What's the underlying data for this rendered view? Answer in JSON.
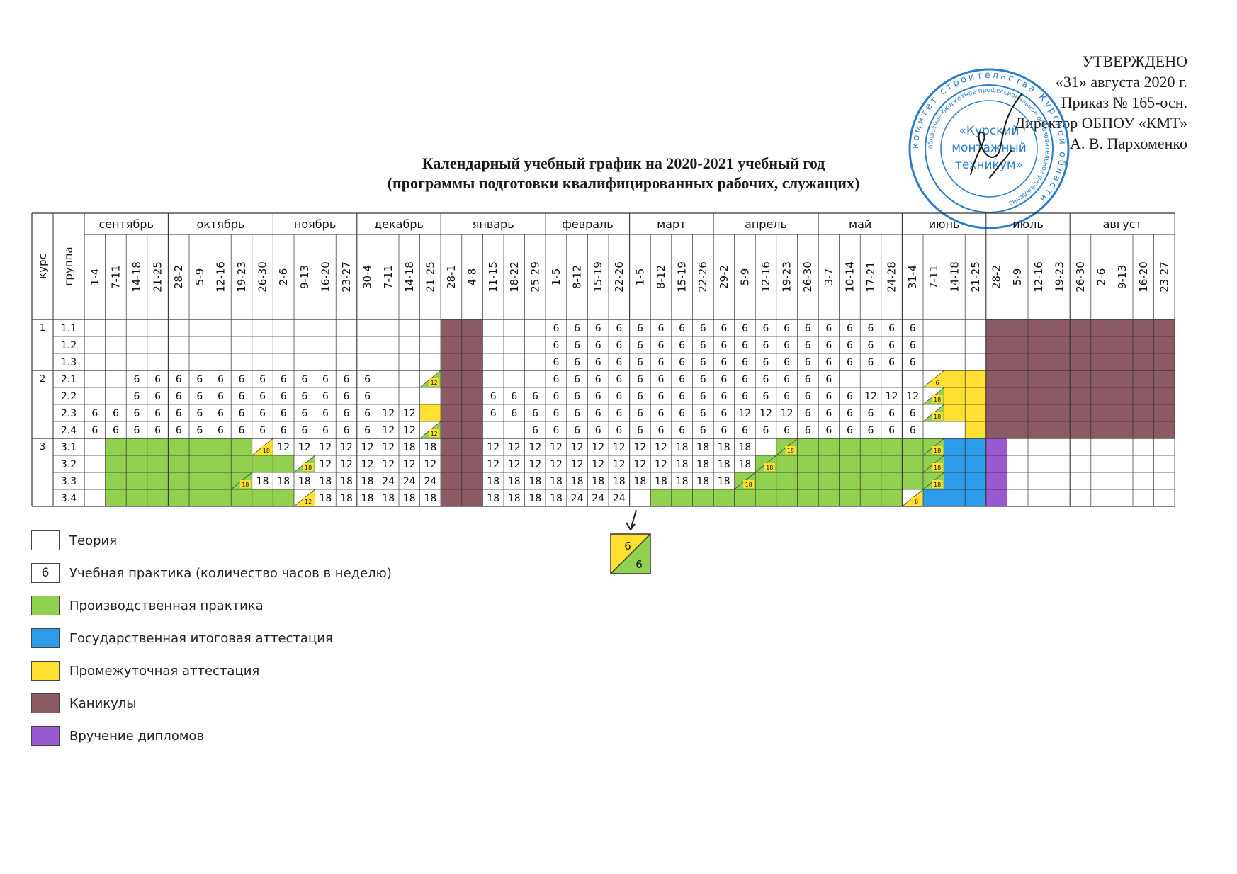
{
  "approval": {
    "l1": "УТВЕРЖДЕНО",
    "l2": "«31» августа 2020 г.",
    "l3": "Приказ № 165-осн.",
    "l4": "Директор ОБПОУ «КМТ»",
    "l5": "А. В. Пархоменко"
  },
  "stamp": {
    "outer": "комитет строительства Курской области",
    "inner": "областное бюджетное профессиональное образовательное учреждение",
    "c1": "«Курский",
    "c2": "монтажный",
    "c3": "техникум»"
  },
  "title": {
    "line1": "Календарный учебный график на 2020-2021 учебный год",
    "line2": "(программы подготовки квалифицированных рабочих, служащих)"
  },
  "headers": {
    "course": "курс",
    "group": "группа"
  },
  "months": [
    {
      "name": "сентябрь",
      "weeks": [
        "1-4",
        "7-11",
        "14-18",
        "21-25"
      ]
    },
    {
      "name": "октябрь",
      "weeks": [
        "28-2",
        "5-9",
        "12-16",
        "19-23",
        "26-30"
      ]
    },
    {
      "name": "ноябрь",
      "weeks": [
        "2-6",
        "9-13",
        "16-20",
        "23-27"
      ]
    },
    {
      "name": "декабрь",
      "weeks": [
        "30-4",
        "7-11",
        "14-18",
        "21-25"
      ]
    },
    {
      "name": "январь",
      "weeks": [
        "28-1",
        "4-8",
        "11-15",
        "18-22",
        "25-29"
      ]
    },
    {
      "name": "февраль",
      "weeks": [
        "1-5",
        "8-12",
        "15-19",
        "22-26"
      ]
    },
    {
      "name": "март",
      "weeks": [
        "1-5",
        "8-12",
        "15-19",
        "22-26"
      ]
    },
    {
      "name": "апрель",
      "weeks": [
        "29-2",
        "5-9",
        "12-16",
        "19-23",
        "26-30"
      ]
    },
    {
      "name": "май",
      "weeks": [
        "3-7",
        "10-14",
        "17-21",
        "24-28"
      ]
    },
    {
      "name": "июнь",
      "weeks": [
        "31-4",
        "7-11",
        "14-18",
        "21-25"
      ]
    },
    {
      "name": "июль",
      "weeks": [
        "28-2",
        "5-9",
        "12-16",
        "19-23"
      ]
    },
    {
      "name": "август",
      "weeks": [
        "26-30",
        "2-6",
        "9-13",
        "16-20",
        "23-27"
      ]
    }
  ],
  "codes": {
    "T": "Теория",
    "P": "Производственная практика",
    "A": "Государственная итоговая аттестация",
    "I": "Промежуточная аттестация",
    "K": "Каникулы",
    "D": "Вручение дипломов",
    "split": "Учебная практика / переход"
  },
  "colors": {
    "T": "#ffffff",
    "P": "#92d050",
    "A": "#2e9be8",
    "I": "#ffe030",
    "K": "#8b5a64",
    "D": "#9b59d0",
    "grid": "#333333",
    "text": "#111111"
  },
  "courses": [
    {
      "course": "1",
      "groups": [
        {
          "group": "1.1",
          "cells": [
            ".",
            ".",
            ".",
            ".",
            ".",
            ".",
            ".",
            ".",
            ".",
            ".",
            ".",
            ".",
            ".",
            ".",
            ".",
            ".",
            ".",
            "K",
            "K",
            ".",
            ".",
            ".",
            "6",
            "6",
            "6",
            "6",
            "6",
            "6",
            "6",
            "6",
            "6",
            "6",
            "6",
            "6",
            "6",
            "6",
            "6",
            "6",
            "6",
            "6",
            ".",
            ".",
            ".",
            "K",
            "K",
            "K",
            "K",
            "K",
            "K",
            "K",
            "K",
            "K"
          ]
        },
        {
          "group": "1.2",
          "cells": [
            ".",
            ".",
            ".",
            ".",
            ".",
            ".",
            ".",
            ".",
            ".",
            ".",
            ".",
            ".",
            ".",
            ".",
            ".",
            ".",
            ".",
            "K",
            "K",
            ".",
            ".",
            ".",
            "6",
            "6",
            "6",
            "6",
            "6",
            "6",
            "6",
            "6",
            "6",
            "6",
            "6",
            "6",
            "6",
            "6",
            "6",
            "6",
            "6",
            "6",
            ".",
            ".",
            ".",
            "K",
            "K",
            "K",
            "K",
            "K",
            "K",
            "K",
            "K",
            "K"
          ]
        },
        {
          "group": "1.3",
          "cells": [
            ".",
            ".",
            ".",
            ".",
            ".",
            ".",
            ".",
            ".",
            ".",
            ".",
            ".",
            ".",
            ".",
            ".",
            ".",
            ".",
            ".",
            "K",
            "K",
            ".",
            ".",
            ".",
            "6",
            "6",
            "6",
            "6",
            "6",
            "6",
            "6",
            "6",
            "6",
            "6",
            "6",
            "6",
            "6",
            "6",
            "6",
            "6",
            "6",
            "6",
            ".",
            ".",
            ".",
            "K",
            "K",
            "K",
            "K",
            "K",
            "K",
            "K",
            "K",
            "K"
          ]
        }
      ]
    },
    {
      "course": "2",
      "groups": [
        {
          "group": "2.1",
          "cells": [
            ".",
            ".",
            "6",
            "6",
            "6",
            "6",
            "6",
            "6",
            "6",
            "6",
            "6",
            "6",
            "6",
            "6",
            ".",
            ".",
            "I/12",
            "K",
            "K",
            ".",
            ".",
            ".",
            "6",
            "6",
            "6",
            "6",
            "6",
            "6",
            "6",
            "6",
            "6",
            "6",
            "6",
            "6",
            "6",
            "6",
            ".",
            ".",
            ".",
            ".",
            "T/6",
            "I",
            "I",
            "K",
            "K",
            "K",
            "K",
            "K",
            "K",
            "K",
            "K",
            "K"
          ]
        },
        {
          "group": "2.2",
          "cells": [
            ".",
            ".",
            "6",
            "6",
            "6",
            "6",
            "6",
            "6",
            "6",
            "6",
            "6",
            "6",
            "6",
            "6",
            ".",
            ".",
            ".",
            "K",
            "K",
            "6",
            "6",
            "6",
            "6",
            "6",
            "6",
            "6",
            "6",
            "6",
            "6",
            "6",
            "6",
            "6",
            "6",
            "6",
            "6",
            "6",
            "6",
            "12",
            "12",
            "12",
            "I/18",
            "I",
            "I",
            "K",
            "K",
            "K",
            "K",
            "K",
            "K",
            "K",
            "K",
            "K"
          ]
        },
        {
          "group": "2.3",
          "cells": [
            "6",
            "6",
            "6",
            "6",
            "6",
            "6",
            "6",
            "6",
            "6",
            "6",
            "6",
            "6",
            "6",
            "6",
            "12",
            "12",
            "I",
            "K",
            "K",
            "6",
            "6",
            "6",
            "6",
            "6",
            "6",
            "6",
            "6",
            "6",
            "6",
            "6",
            "6",
            "12",
            "12",
            "12",
            "6",
            "6",
            "6",
            "6",
            "6",
            "6",
            "I/18",
            "I",
            "I",
            "K",
            "K",
            "K",
            "K",
            "K",
            "K",
            "K",
            "K",
            "K"
          ]
        },
        {
          "group": "2.4",
          "cells": [
            "6",
            "6",
            "6",
            "6",
            "6",
            "6",
            "6",
            "6",
            "6",
            "6",
            "6",
            "6",
            "6",
            "6",
            "12",
            "12",
            "I/12",
            "K",
            "K",
            ".",
            ".",
            "6",
            "6",
            "6",
            "6",
            "6",
            "6",
            "6",
            "6",
            "6",
            "6",
            "6",
            "6",
            "6",
            "6",
            "6",
            "6",
            "6",
            "6",
            "6",
            ".",
            ".",
            "I",
            "K",
            "K",
            "K",
            "K",
            "K",
            "K",
            "K",
            "K",
            "K"
          ]
        }
      ]
    },
    {
      "course": "3",
      "groups": [
        {
          "group": "3.1",
          "cells": [
            ".",
            "P",
            "P",
            "P",
            "P",
            "P",
            "P",
            "P",
            "T/18",
            "12",
            "12",
            "12",
            "12",
            "12",
            "12",
            "18",
            "18",
            "K",
            "K",
            "12",
            "12",
            "12",
            "12",
            "12",
            "12",
            "12",
            "12",
            "12",
            "18",
            "18",
            "18",
            "18",
            ".",
            "P/18",
            "P",
            "P",
            "P",
            "P",
            "P",
            "P",
            "P/18",
            "A",
            "A",
            "D",
            ".",
            ".",
            ".",
            ".",
            ".",
            ".",
            ".",
            "."
          ]
        },
        {
          "group": "3.2",
          "cells": [
            ".",
            "P",
            "P",
            "P",
            "P",
            "P",
            "P",
            "P",
            "P",
            "P",
            "I/18",
            "12",
            "12",
            "12",
            "12",
            "12",
            "12",
            "K",
            "K",
            "12",
            "12",
            "12",
            "12",
            "12",
            "12",
            "12",
            "12",
            "12",
            "18",
            "18",
            "18",
            "18",
            "P/18",
            "P",
            "P",
            "P",
            "P",
            "P",
            "P",
            "P",
            "P/18",
            "A",
            "A",
            "D",
            ".",
            ".",
            ".",
            ".",
            ".",
            ".",
            ".",
            "."
          ]
        },
        {
          "group": "3.3",
          "cells": [
            ".",
            "P",
            "P",
            "P",
            "P",
            "P",
            "P",
            "P/18",
            "18",
            "18",
            "18",
            "18",
            "18",
            "18",
            "24",
            "24",
            "24",
            "K",
            "K",
            "18",
            "18",
            "18",
            "18",
            "18",
            "18",
            "18",
            "18",
            "18",
            "18",
            "18",
            "18",
            "P/18",
            "P",
            "P",
            "P",
            "P",
            "P",
            "P",
            "P",
            "P",
            "P/18",
            "A",
            "A",
            "D",
            ".",
            ".",
            ".",
            ".",
            ".",
            ".",
            ".",
            "."
          ]
        },
        {
          "group": "3.4",
          "cells": [
            ".",
            "P",
            "P",
            "P",
            "P",
            "P",
            "P",
            "P",
            "P",
            "P",
            "T/12",
            "18",
            "18",
            "18",
            "18",
            "18",
            "18",
            "K",
            "K",
            "18",
            "18",
            "18",
            "18",
            "24",
            "24",
            "24",
            ".",
            "P",
            "P",
            "P",
            "P",
            "P",
            "P",
            "P",
            "P",
            "P",
            "P",
            "P",
            "P",
            "T/6",
            "A",
            "A",
            "A",
            "D",
            ".",
            ".",
            ".",
            ".",
            ".",
            ".",
            ".",
            "."
          ]
        }
      ]
    }
  ],
  "legend": [
    {
      "code": "T",
      "box": "",
      "label": "Теория"
    },
    {
      "code": "T",
      "box": "6",
      "label": "Учебная практика (количество часов в неделю)"
    },
    {
      "code": "P",
      "box": "",
      "label": "Производственная практика"
    },
    {
      "code": "A",
      "box": "",
      "label": "Государственная итоговая аттестация"
    },
    {
      "code": "I",
      "box": "",
      "label": "Промежуточная аттестация"
    },
    {
      "code": "K",
      "box": "",
      "label": "Каникулы"
    },
    {
      "code": "D",
      "box": "",
      "label": "Вручение дипломов"
    }
  ],
  "legend_sample": {
    "top": "6",
    "bottom": "6"
  }
}
